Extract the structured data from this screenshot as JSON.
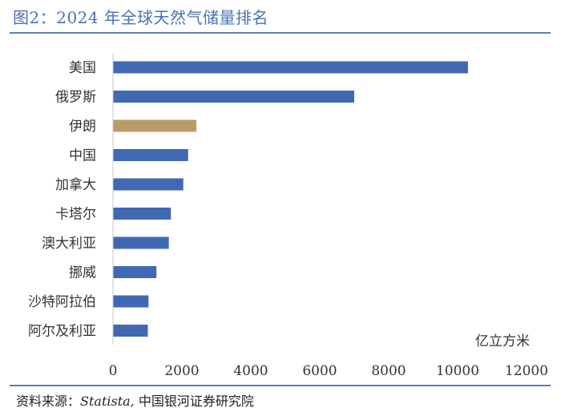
{
  "figure": {
    "title": "图2：2024 年全球天然气储量排名",
    "source_prefix": "资料来源：",
    "source_italic": "Statista,",
    "source_suffix": " 中国银河证券研究院"
  },
  "colors": {
    "bar": "#4168b3",
    "highlight": "#bb9b69",
    "rule": "#5b7fb5",
    "title": "#4a72b2"
  },
  "chart_data": {
    "type": "bar",
    "orientation": "horizontal",
    "categories": [
      "美国",
      "俄罗斯",
      "伊朗",
      "中国",
      "加拿大",
      "卡塔尔",
      "澳大利亚",
      "挪威",
      "沙特阿拉伯",
      "阿尔及利亚"
    ],
    "values": [
      10300,
      7000,
      2420,
      2180,
      2040,
      1680,
      1620,
      1260,
      1030,
      1010
    ],
    "highlight": "伊朗",
    "unit_label": "亿立方米",
    "xlim": [
      0,
      12000
    ],
    "xticks": [
      "0",
      "2000",
      "4000",
      "6000",
      "8000",
      "10000",
      "12000"
    ],
    "grid": false,
    "legend": "none"
  }
}
